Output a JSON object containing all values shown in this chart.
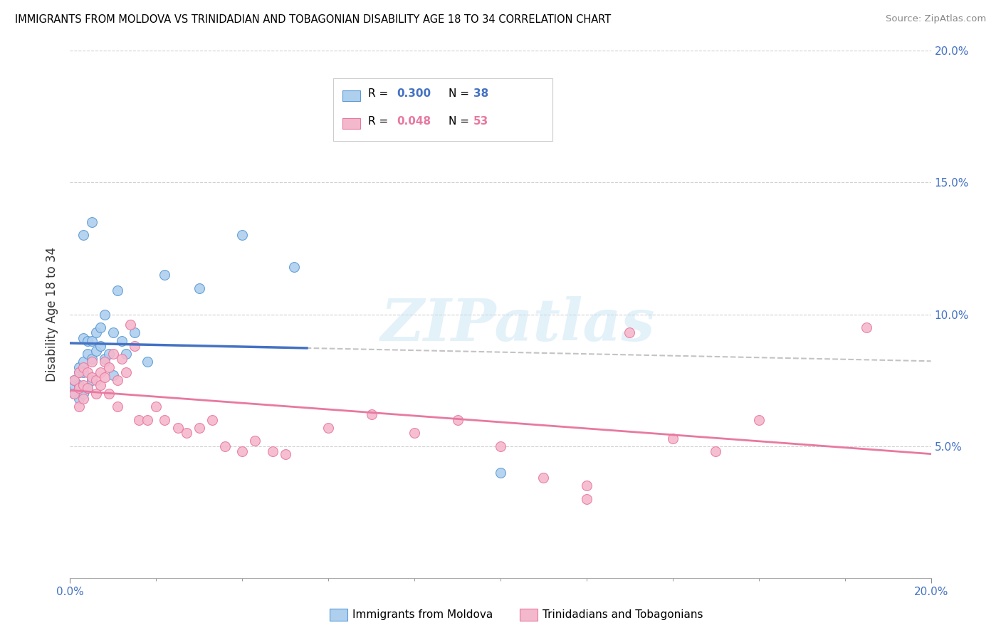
{
  "title": "IMMIGRANTS FROM MOLDOVA VS TRINIDADIAN AND TOBAGONIAN DISABILITY AGE 18 TO 34 CORRELATION CHART",
  "source": "Source: ZipAtlas.com",
  "ylabel": "Disability Age 18 to 34",
  "xlim": [
    0.0,
    0.2
  ],
  "ylim": [
    0.0,
    0.2
  ],
  "moldova_R": 0.3,
  "moldova_N": 38,
  "trinidad_R": 0.048,
  "trinidad_N": 53,
  "moldova_color": "#aecfee",
  "moldova_edge_color": "#5b9bd5",
  "moldova_line_color": "#4472c4",
  "trinidad_color": "#f4b8cc",
  "trinidad_edge_color": "#e879a0",
  "trinidad_line_color": "#e879a0",
  "moldova_scatter_x": [
    0.001,
    0.001,
    0.001,
    0.002,
    0.002,
    0.002,
    0.002,
    0.003,
    0.003,
    0.003,
    0.003,
    0.004,
    0.004,
    0.004,
    0.005,
    0.005,
    0.005,
    0.006,
    0.006,
    0.007,
    0.007,
    0.008,
    0.008,
    0.009,
    0.01,
    0.01,
    0.011,
    0.012,
    0.013,
    0.015,
    0.018,
    0.022,
    0.03,
    0.04,
    0.052,
    0.1,
    0.005,
    0.003
  ],
  "moldova_scatter_y": [
    0.073,
    0.075,
    0.07,
    0.078,
    0.08,
    0.073,
    0.068,
    0.082,
    0.078,
    0.091,
    0.07,
    0.09,
    0.085,
    0.072,
    0.09,
    0.083,
    0.075,
    0.093,
    0.086,
    0.095,
    0.088,
    0.1,
    0.083,
    0.085,
    0.093,
    0.077,
    0.109,
    0.09,
    0.085,
    0.093,
    0.082,
    0.115,
    0.11,
    0.13,
    0.118,
    0.04,
    0.135,
    0.13
  ],
  "trinidad_scatter_x": [
    0.001,
    0.001,
    0.002,
    0.002,
    0.002,
    0.003,
    0.003,
    0.003,
    0.004,
    0.004,
    0.005,
    0.005,
    0.006,
    0.006,
    0.007,
    0.007,
    0.008,
    0.008,
    0.009,
    0.009,
    0.01,
    0.011,
    0.011,
    0.012,
    0.013,
    0.014,
    0.015,
    0.016,
    0.018,
    0.02,
    0.022,
    0.025,
    0.027,
    0.03,
    0.033,
    0.036,
    0.04,
    0.043,
    0.047,
    0.05,
    0.06,
    0.07,
    0.08,
    0.09,
    0.1,
    0.11,
    0.12,
    0.13,
    0.14,
    0.15,
    0.16,
    0.185,
    0.12
  ],
  "trinidad_scatter_y": [
    0.075,
    0.07,
    0.078,
    0.072,
    0.065,
    0.08,
    0.073,
    0.068,
    0.078,
    0.072,
    0.082,
    0.076,
    0.075,
    0.07,
    0.078,
    0.073,
    0.082,
    0.076,
    0.08,
    0.07,
    0.085,
    0.075,
    0.065,
    0.083,
    0.078,
    0.096,
    0.088,
    0.06,
    0.06,
    0.065,
    0.06,
    0.057,
    0.055,
    0.057,
    0.06,
    0.05,
    0.048,
    0.052,
    0.048,
    0.047,
    0.057,
    0.062,
    0.055,
    0.06,
    0.05,
    0.038,
    0.03,
    0.093,
    0.053,
    0.048,
    0.06,
    0.095,
    0.035
  ],
  "watermark_text": "ZIPatlas",
  "legend_label_moldova": "Immigrants from Moldova",
  "legend_label_trinidad": "Trinidadians and Tobagonians"
}
